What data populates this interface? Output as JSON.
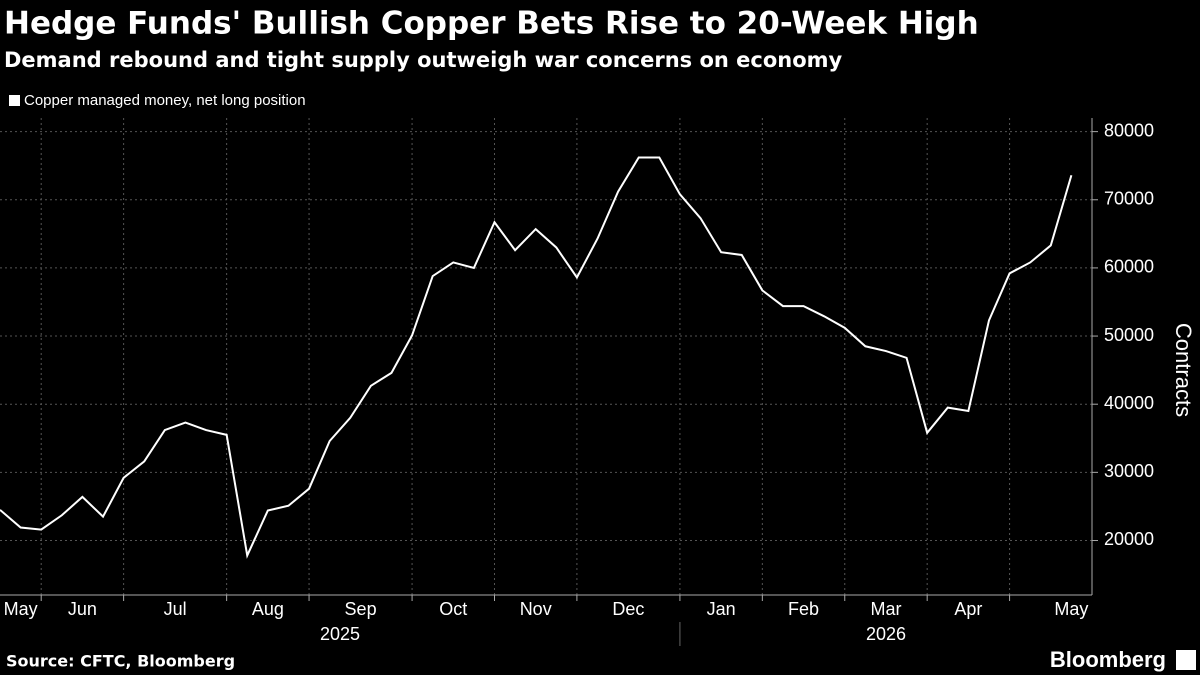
{
  "chart_data": {
    "type": "line",
    "title": "Hedge Funds' Bullish Copper Bets Rise to 20-Week High",
    "subtitle": "Demand rebound and tight supply outweigh war concerns on economy",
    "y_label": "Contracts",
    "source": "Source: CFTC, Bloomberg",
    "brand": "Bloomberg",
    "x": [
      0,
      1,
      2,
      3,
      4,
      5,
      6,
      7,
      8,
      9,
      10,
      11,
      12,
      13,
      14,
      15,
      16,
      17,
      18,
      19,
      20,
      21,
      22,
      23,
      24,
      25,
      26,
      27,
      28,
      29,
      30,
      31,
      32,
      33,
      34,
      35,
      36,
      37,
      38,
      39,
      40,
      41,
      42,
      43,
      44,
      45,
      46,
      47,
      48,
      49,
      50,
      51,
      52
    ],
    "series": [
      {
        "name": "Copper managed money, net long position",
        "color": "#ffffff",
        "values": [
          24500,
          21900,
          21600,
          23700,
          26400,
          23500,
          29200,
          31600,
          36200,
          37300,
          36200,
          35500,
          17800,
          24400,
          25100,
          27600,
          34600,
          38000,
          42700,
          44600,
          50100,
          58800,
          60800,
          60000,
          66700,
          62600,
          65700,
          63000,
          58600,
          64300,
          71200,
          76200,
          76200,
          70800,
          67300,
          62300,
          61900,
          56700,
          54400,
          54400,
          52900,
          51200,
          48500,
          47800,
          46800,
          35800,
          39500,
          39000,
          52300,
          59200,
          60800,
          63300,
          73600
        ]
      }
    ],
    "xlim": [
      0,
      53
    ],
    "xticks": [
      {
        "value": 1,
        "label": "May"
      },
      {
        "value": 4,
        "label": "Jun"
      },
      {
        "value": 8.5,
        "label": "Jul"
      },
      {
        "value": 13,
        "label": "Aug"
      },
      {
        "value": 17.5,
        "label": "Sep"
      },
      {
        "value": 22,
        "label": "Oct"
      },
      {
        "value": 26,
        "label": "Nov"
      },
      {
        "value": 30.5,
        "label": "Dec"
      },
      {
        "value": 35,
        "label": "Jan"
      },
      {
        "value": 39,
        "label": "Feb"
      },
      {
        "value": 43,
        "label": "Mar"
      },
      {
        "value": 47,
        "label": "Apr"
      },
      {
        "value": 52,
        "label": "May"
      }
    ],
    "xgrid": [
      2,
      6,
      11,
      15,
      20,
      24,
      28,
      33,
      37,
      41,
      45,
      49
    ],
    "years": [
      {
        "value": 16.5,
        "label": "2025"
      },
      {
        "value": 43,
        "label": "2026"
      }
    ],
    "year_divider": 33,
    "ylim": [
      12000,
      82000
    ],
    "yticks": [
      20000,
      30000,
      40000,
      50000,
      60000,
      70000,
      80000
    ],
    "grid": true
  }
}
